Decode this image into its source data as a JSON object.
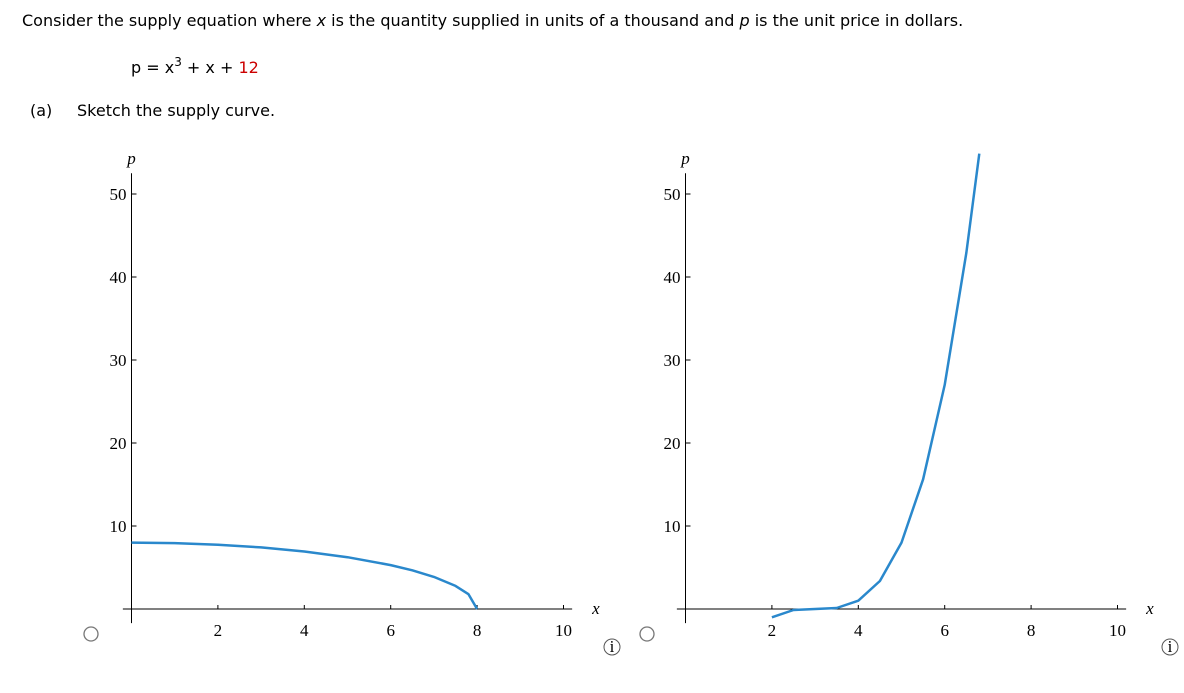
{
  "question": {
    "intro": [
      "Consider the supply equation where ",
      "x",
      " is the quantity supplied in units of a thousand and ",
      "p",
      " is the unit price in dollars."
    ],
    "equation": {
      "lhs": "p = x",
      "power": "3",
      "rest": " + x + ",
      "constant": "12"
    },
    "part": {
      "label": "(a)",
      "text": "Sketch the supply curve."
    }
  },
  "info": "i",
  "options": [
    {
      "x_label": "x",
      "y_label": "p",
      "xlim": [
        -0.2,
        10.2
      ],
      "ylim": [
        -1.7,
        52.5
      ],
      "xticks": [
        2,
        4,
        6,
        8,
        10
      ],
      "yticks": [
        10,
        20,
        30,
        40,
        50
      ],
      "color": "#2a88cc",
      "curve_x": [
        0,
        1,
        2,
        3,
        4,
        5,
        6,
        6.5,
        7,
        7.5,
        7.8,
        8
      ],
      "curve_y": [
        8,
        7.94,
        7.75,
        7.42,
        6.93,
        6.24,
        5.29,
        4.66,
        3.87,
        2.78,
        1.78,
        0
      ]
    },
    {
      "x_label": "x",
      "y_label": "p",
      "xlim": [
        -0.2,
        10.2
      ],
      "ylim": [
        -1.7,
        52.5
      ],
      "xticks": [
        2,
        4,
        6,
        8,
        10
      ],
      "yticks": [
        10,
        20,
        30,
        40,
        50
      ],
      "color": "#2a88cc",
      "curve_x": [
        2,
        2.5,
        3,
        3.5,
        4,
        4.5,
        5,
        5.5,
        6,
        6.5,
        6.8
      ],
      "curve_y": [
        -1,
        -0.125,
        0,
        0.125,
        1,
        3.375,
        8,
        15.625,
        27,
        42.875,
        54.872
      ]
    }
  ]
}
